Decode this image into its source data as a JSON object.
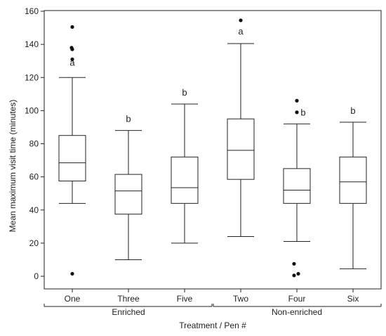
{
  "chart_data": {
    "type": "box",
    "ylabel": "Mean maximum visit time (minutes)",
    "xlabel": "Treatment / Pen #",
    "ylim": [
      0,
      160
    ],
    "yticks": [
      0,
      20,
      40,
      60,
      80,
      100,
      120,
      140,
      160
    ],
    "groups": [
      {
        "name": "Enriched",
        "categories": [
          "One",
          "Three",
          "Five"
        ]
      },
      {
        "name": "Non-enriched",
        "categories": [
          "Two",
          "Four",
          "Six"
        ]
      }
    ],
    "boxes": [
      {
        "category": "One",
        "whisker_low": 44,
        "q1": 57.5,
        "median": 68.5,
        "q3": 85,
        "whisker_high": 120,
        "outliers": [
          150.5,
          138,
          137,
          131,
          1.5
        ],
        "letter": "a"
      },
      {
        "category": "Three",
        "whisker_low": 10,
        "q1": 37.5,
        "median": 51.5,
        "q3": 61.5,
        "whisker_high": 88,
        "outliers": [],
        "letter": "b"
      },
      {
        "category": "Five",
        "whisker_low": 20,
        "q1": 44,
        "median": 53.5,
        "q3": 72,
        "whisker_high": 104,
        "outliers": [],
        "letter": "b"
      },
      {
        "category": "Two",
        "whisker_low": 24,
        "q1": 58.5,
        "median": 76,
        "q3": 95,
        "whisker_high": 140.5,
        "outliers": [
          154.5
        ],
        "letter": "a"
      },
      {
        "category": "Four",
        "whisker_low": 21,
        "q1": 44,
        "median": 52,
        "q3": 65,
        "whisker_high": 92,
        "outliers": [
          106,
          99,
          7.5,
          1.5,
          0.5
        ],
        "letter": "b"
      },
      {
        "category": "Six",
        "whisker_low": 4.5,
        "q1": 44,
        "median": 57,
        "q3": 72,
        "whisker_high": 93,
        "outliers": [],
        "letter": "b"
      }
    ]
  }
}
